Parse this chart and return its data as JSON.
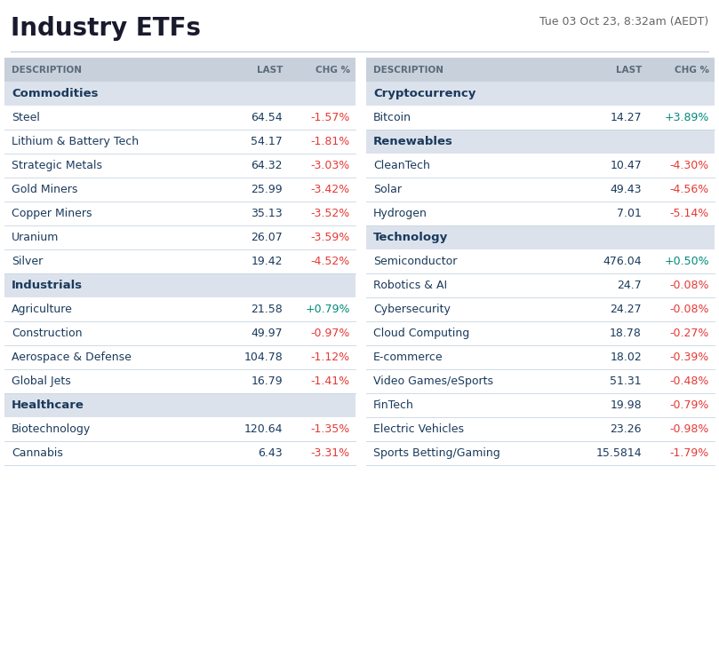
{
  "title": "Industry ETFs",
  "subtitle": "Tue 03 Oct 23, 8:32am (AEDT)",
  "title_color": "#1a1a2e",
  "subtitle_color": "#666666",
  "header_bg": "#c8d0dc",
  "section_bg": "#dce2ec",
  "positive_color": "#00897b",
  "negative_color": "#e53935",
  "text_color": "#1a3a5c",
  "header_text_color": "#5a6a7a",
  "border_color": "#c8d4e0",
  "left_table": {
    "sections": [
      {
        "name": "Commodities",
        "rows": [
          [
            "Steel",
            "64.54",
            "-1.57%"
          ],
          [
            "Lithium & Battery Tech",
            "54.17",
            "-1.81%"
          ],
          [
            "Strategic Metals",
            "64.32",
            "-3.03%"
          ],
          [
            "Gold Miners",
            "25.99",
            "-3.42%"
          ],
          [
            "Copper Miners",
            "35.13",
            "-3.52%"
          ],
          [
            "Uranium",
            "26.07",
            "-3.59%"
          ],
          [
            "Silver",
            "19.42",
            "-4.52%"
          ]
        ]
      },
      {
        "name": "Industrials",
        "rows": [
          [
            "Agriculture",
            "21.58",
            "+0.79%"
          ],
          [
            "Construction",
            "49.97",
            "-0.97%"
          ],
          [
            "Aerospace & Defense",
            "104.78",
            "-1.12%"
          ],
          [
            "Global Jets",
            "16.79",
            "-1.41%"
          ]
        ]
      },
      {
        "name": "Healthcare",
        "rows": [
          [
            "Biotechnology",
            "120.64",
            "-1.35%"
          ],
          [
            "Cannabis",
            "6.43",
            "-3.31%"
          ]
        ]
      }
    ]
  },
  "right_table": {
    "sections": [
      {
        "name": "Cryptocurrency",
        "rows": [
          [
            "Bitcoin",
            "14.27",
            "+3.89%"
          ]
        ]
      },
      {
        "name": "Renewables",
        "rows": [
          [
            "CleanTech",
            "10.47",
            "-4.30%"
          ],
          [
            "Solar",
            "49.43",
            "-4.56%"
          ],
          [
            "Hydrogen",
            "7.01",
            "-5.14%"
          ]
        ]
      },
      {
        "name": "Technology",
        "rows": [
          [
            "Semiconductor",
            "476.04",
            "+0.50%"
          ],
          [
            "Robotics & AI",
            "24.7",
            "-0.08%"
          ],
          [
            "Cybersecurity",
            "24.27",
            "-0.08%"
          ],
          [
            "Cloud Computing",
            "18.78",
            "-0.27%"
          ],
          [
            "E-commerce",
            "18.02",
            "-0.39%"
          ],
          [
            "Video Games/eSports",
            "51.31",
            "-0.48%"
          ],
          [
            "FinTech",
            "19.98",
            "-0.79%"
          ],
          [
            "Electric Vehicles",
            "23.26",
            "-0.98%"
          ],
          [
            "Sports Betting/Gaming",
            "15.5814",
            "-1.79%"
          ]
        ]
      }
    ]
  }
}
